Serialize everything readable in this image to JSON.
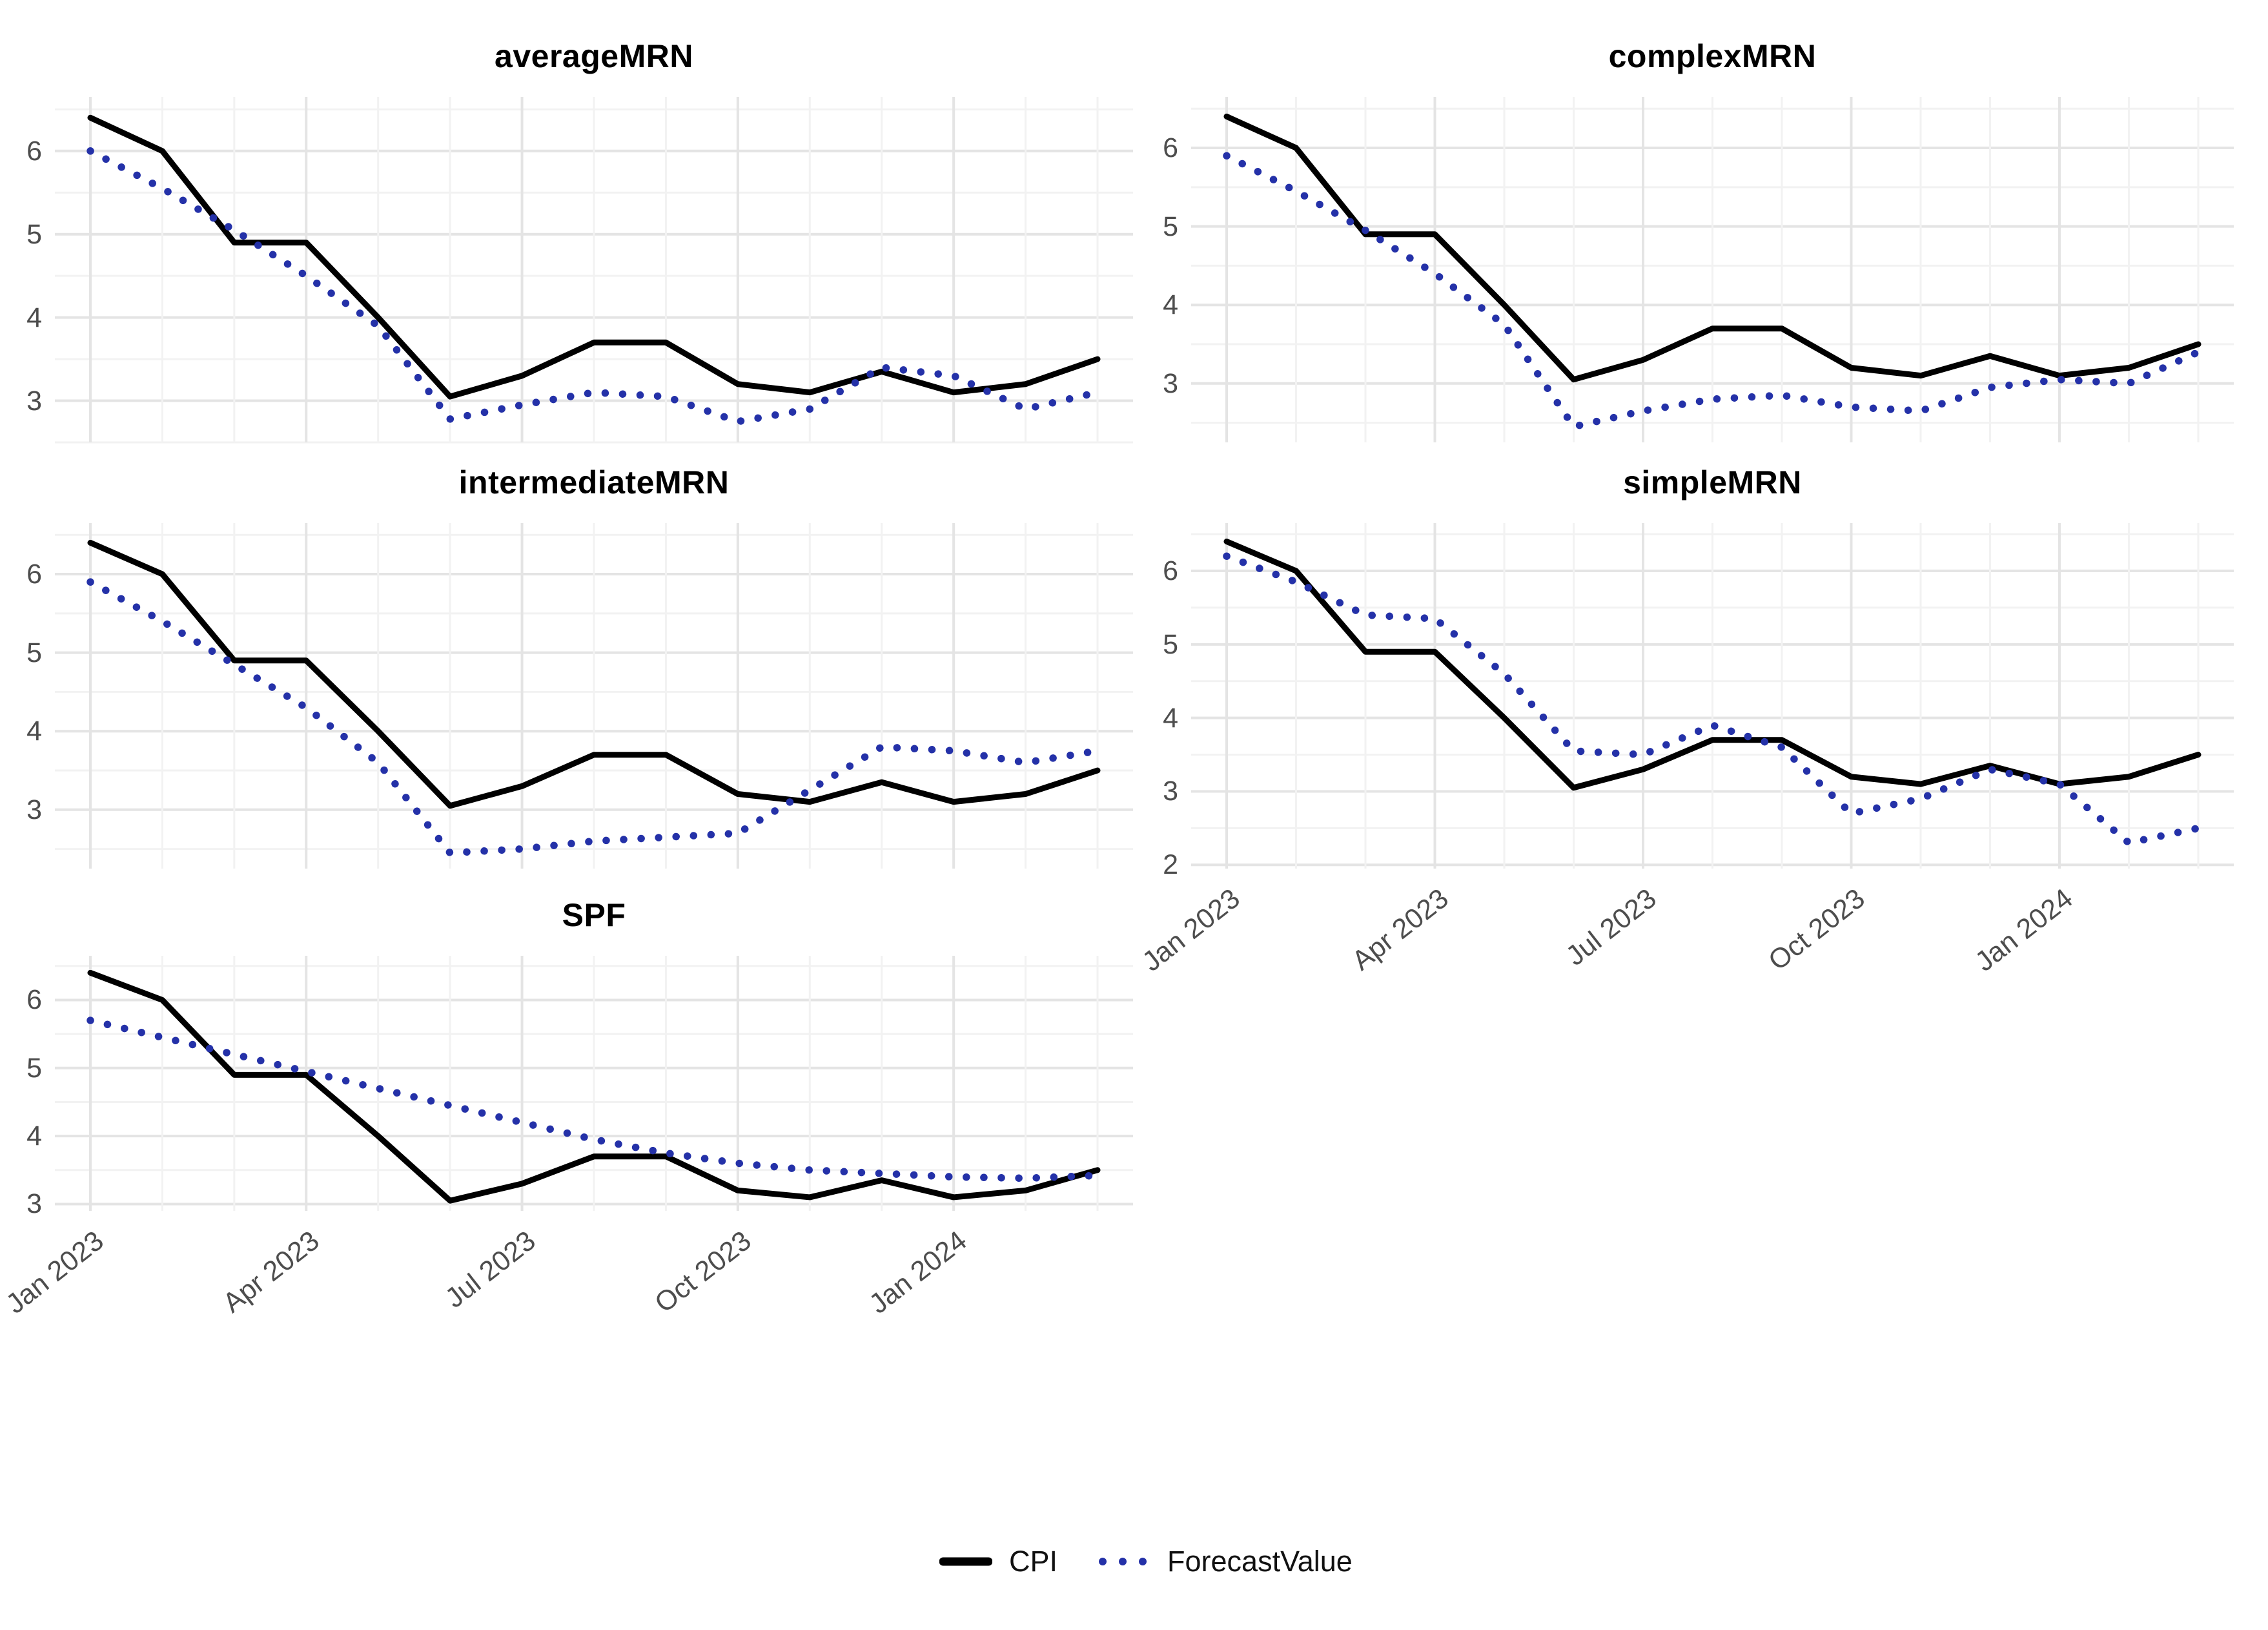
{
  "figure": {
    "background_color": "#ffffff",
    "grid_major_color": "#e4e4e4",
    "grid_minor_color": "#f2f2f2",
    "axis_text_color": "#4d4d4d",
    "legend": {
      "position": "bottom-center",
      "items": [
        {
          "label": "CPI",
          "style": "solid",
          "color": "#000000"
        },
        {
          "label": "ForecastValue",
          "style": "dotted",
          "color": "#2431a8"
        }
      ]
    }
  },
  "chart_data": [
    {
      "type": "line",
      "title": "averageMRN",
      "x": [
        "Jan 2023",
        "Feb 2023",
        "Mar 2023",
        "Apr 2023",
        "May 2023",
        "Jun 2023",
        "Jul 2023",
        "Aug 2023",
        "Sep 2023",
        "Oct 2023",
        "Nov 2023",
        "Dec 2023",
        "Jan 2024",
        "Feb 2024",
        "Mar 2024"
      ],
      "x_tick_labels": [
        "Jan 2023",
        "Apr 2023",
        "Jul 2023",
        "Oct 2023",
        "Jan 2024"
      ],
      "show_x_axis_labels": false,
      "yticks": [
        3,
        4,
        5,
        6
      ],
      "ylim": [
        2.5,
        6.65
      ],
      "grid": true,
      "series": [
        {
          "name": "CPI",
          "style": "solid",
          "color": "#000000",
          "values": [
            6.4,
            6.0,
            4.9,
            4.9,
            4.0,
            3.05,
            3.3,
            3.7,
            3.7,
            3.2,
            3.1,
            3.35,
            3.1,
            3.2,
            3.5
          ]
        },
        {
          "name": "ForecastValue",
          "style": "dotted",
          "color": "#2431a8",
          "values": [
            6.0,
            5.55,
            5.05,
            4.5,
            3.9,
            2.78,
            2.95,
            3.1,
            3.05,
            2.75,
            2.9,
            3.4,
            3.3,
            2.9,
            3.1
          ]
        }
      ]
    },
    {
      "type": "line",
      "title": "complexMRN",
      "x": [
        "Jan 2023",
        "Feb 2023",
        "Mar 2023",
        "Apr 2023",
        "May 2023",
        "Jun 2023",
        "Jul 2023",
        "Aug 2023",
        "Sep 2023",
        "Oct 2023",
        "Nov 2023",
        "Dec 2023",
        "Jan 2024",
        "Feb 2024",
        "Mar 2024"
      ],
      "x_tick_labels": [
        "Jan 2023",
        "Apr 2023",
        "Jul 2023",
        "Oct 2023",
        "Jan 2024"
      ],
      "show_x_axis_labels": false,
      "yticks": [
        3,
        4,
        5,
        6
      ],
      "ylim": [
        2.25,
        6.65
      ],
      "grid": true,
      "series": [
        {
          "name": "CPI",
          "style": "solid",
          "color": "#000000",
          "values": [
            6.4,
            6.0,
            4.9,
            4.9,
            4.0,
            3.05,
            3.3,
            3.7,
            3.7,
            3.2,
            3.1,
            3.35,
            3.1,
            3.2,
            3.5
          ]
        },
        {
          "name": "ForecastValue",
          "style": "dotted",
          "color": "#2431a8",
          "values": [
            5.9,
            5.45,
            4.95,
            4.4,
            3.75,
            2.45,
            2.65,
            2.8,
            2.85,
            2.7,
            2.65,
            2.95,
            3.05,
            3.0,
            3.4
          ]
        }
      ]
    },
    {
      "type": "line",
      "title": "intermediateMRN",
      "x": [
        "Jan 2023",
        "Feb 2023",
        "Mar 2023",
        "Apr 2023",
        "May 2023",
        "Jun 2023",
        "Jul 2023",
        "Aug 2023",
        "Sep 2023",
        "Oct 2023",
        "Nov 2023",
        "Dec 2023",
        "Jan 2024",
        "Feb 2024",
        "Mar 2024"
      ],
      "x_tick_labels": [
        "Jan 2023",
        "Apr 2023",
        "Jul 2023",
        "Oct 2023",
        "Jan 2024"
      ],
      "show_x_axis_labels": false,
      "yticks": [
        3,
        4,
        5,
        6
      ],
      "ylim": [
        2.25,
        6.65
      ],
      "grid": true,
      "series": [
        {
          "name": "CPI",
          "style": "solid",
          "color": "#000000",
          "values": [
            6.4,
            6.0,
            4.9,
            4.9,
            4.0,
            3.05,
            3.3,
            3.7,
            3.7,
            3.2,
            3.1,
            3.35,
            3.1,
            3.2,
            3.5
          ]
        },
        {
          "name": "ForecastValue",
          "style": "dotted",
          "color": "#2431a8",
          "values": [
            5.9,
            5.4,
            4.85,
            4.3,
            3.6,
            2.45,
            2.5,
            2.6,
            2.65,
            2.7,
            3.25,
            3.8,
            3.75,
            3.6,
            3.75
          ]
        }
      ]
    },
    {
      "type": "line",
      "title": "simpleMRN",
      "x": [
        "Jan 2023",
        "Feb 2023",
        "Mar 2023",
        "Apr 2023",
        "May 2023",
        "Jun 2023",
        "Jul 2023",
        "Aug 2023",
        "Sep 2023",
        "Oct 2023",
        "Nov 2023",
        "Dec 2023",
        "Jan 2024",
        "Feb 2024",
        "Mar 2024"
      ],
      "x_tick_labels": [
        "Jan 2023",
        "Apr 2023",
        "Jul 2023",
        "Oct 2023",
        "Jan 2024"
      ],
      "show_x_axis_labels": true,
      "yticks": [
        2,
        3,
        4,
        5,
        6
      ],
      "ylim": [
        1.95,
        6.65
      ],
      "grid": true,
      "series": [
        {
          "name": "CPI",
          "style": "solid",
          "color": "#000000",
          "values": [
            6.4,
            6.0,
            4.9,
            4.9,
            4.0,
            3.05,
            3.3,
            3.7,
            3.7,
            3.2,
            3.1,
            3.35,
            3.1,
            3.2,
            3.5
          ]
        },
        {
          "name": "ForecastValue",
          "style": "dotted",
          "color": "#2431a8",
          "values": [
            6.2,
            5.85,
            5.4,
            5.35,
            4.6,
            3.55,
            3.5,
            3.9,
            3.6,
            2.7,
            2.9,
            3.3,
            3.1,
            2.3,
            2.5
          ]
        }
      ]
    },
    {
      "type": "line",
      "title": "SPF",
      "x": [
        "Jan 2023",
        "Feb 2023",
        "Mar 2023",
        "Apr 2023",
        "May 2023",
        "Jun 2023",
        "Jul 2023",
        "Aug 2023",
        "Sep 2023",
        "Oct 2023",
        "Nov 2023",
        "Dec 2023",
        "Jan 2024",
        "Feb 2024",
        "Mar 2024"
      ],
      "x_tick_labels": [
        "Jan 2023",
        "Apr 2023",
        "Jul 2023",
        "Oct 2023",
        "Jan 2024"
      ],
      "show_x_axis_labels": true,
      "yticks": [
        3,
        4,
        5,
        6
      ],
      "ylim": [
        2.9,
        6.65
      ],
      "grid": true,
      "series": [
        {
          "name": "CPI",
          "style": "solid",
          "color": "#000000",
          "values": [
            6.4,
            6.0,
            4.9,
            4.9,
            4.0,
            3.05,
            3.3,
            3.7,
            3.7,
            3.2,
            3.1,
            3.35,
            3.1,
            3.2,
            3.5
          ]
        },
        {
          "name": "ForecastValue",
          "style": "dotted",
          "color": "#2431a8",
          "values": [
            5.7,
            5.45,
            5.2,
            4.95,
            4.7,
            4.45,
            4.2,
            3.95,
            3.75,
            3.6,
            3.5,
            3.45,
            3.4,
            3.38,
            3.42
          ]
        }
      ]
    }
  ]
}
